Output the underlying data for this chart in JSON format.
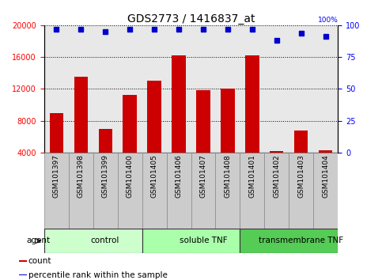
{
  "title": "GDS2773 / 1416837_at",
  "categories": [
    "GSM101397",
    "GSM101398",
    "GSM101399",
    "GSM101400",
    "GSM101405",
    "GSM101406",
    "GSM101407",
    "GSM101408",
    "GSM101401",
    "GSM101402",
    "GSM101403",
    "GSM101404"
  ],
  "bar_values": [
    9000,
    13500,
    7000,
    11200,
    13000,
    16200,
    11800,
    12000,
    16200,
    4200,
    6800,
    4300
  ],
  "bar_bottom": 4000,
  "percentile_values": [
    97,
    97,
    95,
    97,
    97,
    97,
    97,
    97,
    97,
    88,
    94,
    91
  ],
  "bar_color": "#cc0000",
  "percentile_color": "#0000cc",
  "ylim_left": [
    4000,
    20000
  ],
  "ylim_right": [
    0,
    100
  ],
  "yticks_left": [
    4000,
    8000,
    12000,
    16000,
    20000
  ],
  "yticks_right": [
    0,
    25,
    50,
    75,
    100
  ],
  "groups": [
    {
      "label": "control",
      "start": 0,
      "end": 4,
      "color": "#ccffcc"
    },
    {
      "label": "soluble TNF",
      "start": 4,
      "end": 8,
      "color": "#aaffaa"
    },
    {
      "label": "transmembrane TNF",
      "start": 8,
      "end": 12,
      "color": "#55cc55"
    }
  ],
  "agent_label": "agent",
  "legend_items": [
    {
      "color": "#cc0000",
      "label": "count"
    },
    {
      "color": "#0000cc",
      "label": "percentile rank within the sample"
    }
  ],
  "background_color": "#ffffff",
  "plot_bg_color": "#e8e8e8",
  "tick_area_color": "#cccccc",
  "title_fontsize": 10,
  "tick_fontsize": 7,
  "bar_width": 0.55,
  "percentile_markersize": 5,
  "grid_color": "#000000"
}
